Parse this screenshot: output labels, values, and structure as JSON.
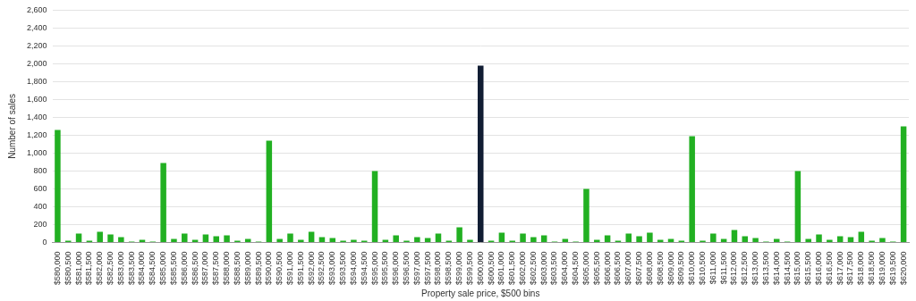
{
  "chart_data": {
    "type": "bar",
    "x_label": "Property sale price, $500 bins",
    "y_label": "Number of sales",
    "categories": [
      "$580,000",
      "$580,500",
      "$581,000",
      "$581,500",
      "$582,000",
      "$582,500",
      "$583,000",
      "$583,500",
      "$584,000",
      "$584,500",
      "$585,000",
      "$585,500",
      "$586,000",
      "$586,500",
      "$587,000",
      "$587,500",
      "$588,000",
      "$588,500",
      "$589,000",
      "$589,500",
      "$590,000",
      "$590,500",
      "$591,000",
      "$591,500",
      "$592,000",
      "$592,500",
      "$593,000",
      "$593,500",
      "$594,000",
      "$594,500",
      "$595,000",
      "$595,500",
      "$596,000",
      "$596,500",
      "$597,000",
      "$597,500",
      "$598,000",
      "$598,500",
      "$599,000",
      "$599,500",
      "$600,000",
      "$600,500",
      "$601,000",
      "$601,500",
      "$602,000",
      "$602,500",
      "$603,000",
      "$603,500",
      "$604,000",
      "$604,500",
      "$605,000",
      "$605,500",
      "$606,000",
      "$606,500",
      "$607,000",
      "$607,500",
      "$608,000",
      "$608,500",
      "$609,000",
      "$609,500",
      "$610,000",
      "$610,500",
      "$611,000",
      "$611,500",
      "$612,000",
      "$612,500",
      "$613,000",
      "$613,500",
      "$614,000",
      "$614,500",
      "$615,000",
      "$615,500",
      "$616,000",
      "$616,500",
      "$617,000",
      "$617,500",
      "$618,000",
      "$618,500",
      "$619,000",
      "$619,500",
      "$620,000"
    ],
    "values": [
      1260,
      20,
      100,
      20,
      120,
      90,
      60,
      10,
      30,
      10,
      890,
      40,
      100,
      30,
      90,
      70,
      80,
      20,
      40,
      10,
      1140,
      40,
      100,
      30,
      120,
      60,
      50,
      20,
      30,
      20,
      800,
      30,
      80,
      20,
      60,
      50,
      100,
      20,
      170,
      30,
      1980,
      20,
      110,
      20,
      100,
      60,
      80,
      10,
      40,
      10,
      600,
      30,
      80,
      20,
      100,
      70,
      110,
      30,
      40,
      20,
      1190,
      20,
      100,
      40,
      140,
      70,
      50,
      10,
      40,
      10,
      800,
      40,
      90,
      30,
      70,
      60,
      120,
      20,
      50,
      10,
      1300
    ],
    "colors": [
      "#22b022",
      "#22b022",
      "#22b022",
      "#22b022",
      "#22b022",
      "#22b022",
      "#22b022",
      "#22b022",
      "#22b022",
      "#22b022",
      "#22b022",
      "#22b022",
      "#22b022",
      "#22b022",
      "#22b022",
      "#22b022",
      "#22b022",
      "#22b022",
      "#22b022",
      "#22b022",
      "#22b022",
      "#22b022",
      "#22b022",
      "#22b022",
      "#22b022",
      "#22b022",
      "#22b022",
      "#22b022",
      "#22b022",
      "#22b022",
      "#22b022",
      "#22b022",
      "#22b022",
      "#22b022",
      "#22b022",
      "#22b022",
      "#22b022",
      "#22b022",
      "#22b022",
      "#22b022",
      "#111d33",
      "#22b022",
      "#22b022",
      "#22b022",
      "#22b022",
      "#22b022",
      "#22b022",
      "#22b022",
      "#22b022",
      "#22b022",
      "#22b022",
      "#22b022",
      "#22b022",
      "#22b022",
      "#22b022",
      "#22b022",
      "#22b022",
      "#22b022",
      "#22b022",
      "#22b022",
      "#22b022",
      "#22b022",
      "#22b022",
      "#22b022",
      "#22b022",
      "#22b022",
      "#22b022",
      "#22b022",
      "#22b022",
      "#22b022",
      "#22b022",
      "#22b022",
      "#22b022",
      "#22b022",
      "#22b022",
      "#22b022",
      "#22b022",
      "#22b022",
      "#22b022",
      "#22b022",
      "#22b022"
    ],
    "ylim": [
      0,
      2600
    ],
    "yticks": [
      0,
      200,
      400,
      600,
      800,
      {
        "value": 1000,
        "label": "1,000"
      },
      {
        "value": 1200,
        "label": "1,200"
      },
      {
        "value": 1400,
        "label": "1,400"
      },
      {
        "value": 1600,
        "label": "1,600"
      },
      {
        "value": 1800,
        "label": "1,800"
      },
      {
        "value": 2000,
        "label": "2,000"
      },
      {
        "value": 2200,
        "label": "2,200"
      },
      {
        "value": 2400,
        "label": "2,400"
      },
      {
        "value": 2600,
        "label": "2,600"
      }
    ],
    "grid": true
  }
}
